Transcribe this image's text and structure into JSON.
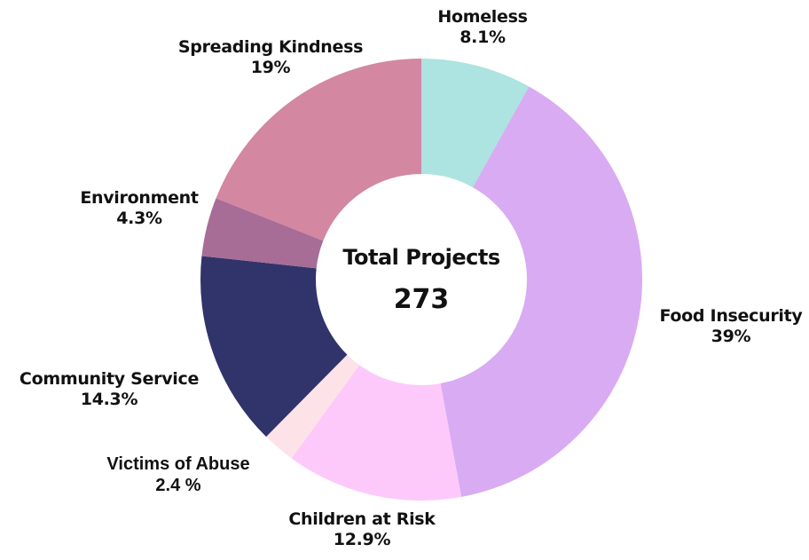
{
  "chart_data": {
    "type": "pie",
    "donut": true,
    "center_label": "Total Projects",
    "center_value": "273",
    "slices": [
      {
        "label": "Homeless",
        "value": 8.1,
        "value_text": "8.1%",
        "color": "#ade3e1"
      },
      {
        "label": "Food Insecurity",
        "value": 39,
        "value_text": "39%",
        "color": "#d9abf2"
      },
      {
        "label": "Children at Risk",
        "value": 12.9,
        "value_text": "12.9%",
        "color": "#fdc9fb"
      },
      {
        "label": "Victims of Abuse",
        "value": 2.4,
        "value_text": "2.4 %",
        "color": "#fde3e8"
      },
      {
        "label": "Community Service",
        "value": 14.3,
        "value_text": "14.3%",
        "color": "#31346a"
      },
      {
        "label": "Environment",
        "value": 4.3,
        "value_text": "4.3%",
        "color": "#a76d97"
      },
      {
        "label": "Spreading Kindness",
        "value": 19,
        "value_text": "19%",
        "color": "#d387a1"
      }
    ],
    "legend": "none"
  }
}
